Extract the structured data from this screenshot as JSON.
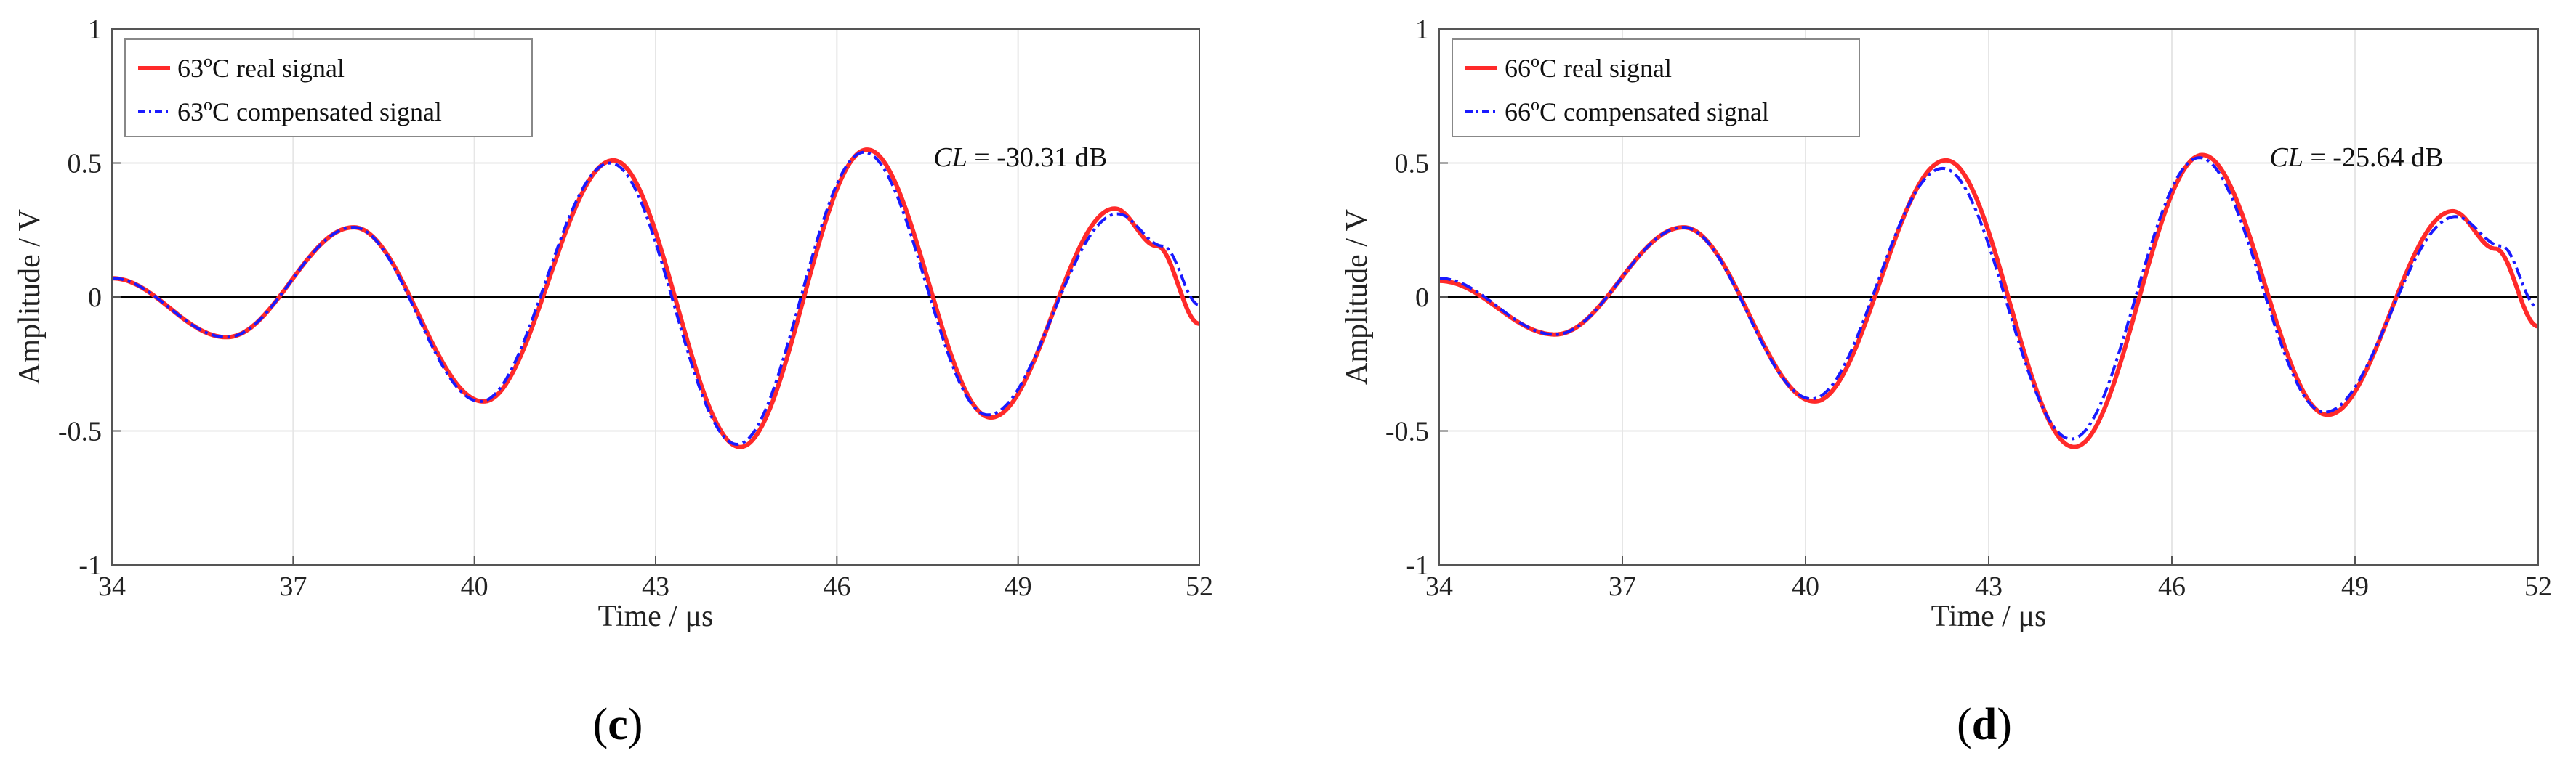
{
  "chart_data": [
    {
      "type": "line",
      "panel_label": "(c)",
      "xlabel": "Time / μs",
      "ylabel": "Amplitude / V",
      "xlim": [
        34,
        52
      ],
      "ylim": [
        -1,
        1
      ],
      "xticks": [
        34,
        37,
        40,
        43,
        46,
        49,
        52
      ],
      "yticks": [
        1,
        0.5,
        0,
        -0.5,
        -1
      ],
      "xtick_labels": [
        "34",
        "37",
        "40",
        "43",
        "46",
        "49",
        "52"
      ],
      "ytick_labels": [
        "1",
        "0.5",
        "0",
        "-0.5",
        "-1"
      ],
      "grid": true,
      "legend_position": "top-left",
      "annotation": {
        "var": "CL",
        "text": " = -30.31 dB",
        "x": 47.6,
        "y": 0.52
      },
      "series": [
        {
          "name": "63°C real signal",
          "legend_base": "63",
          "legend_sup": "o",
          "legend_rest": "C real signal",
          "color": "#ff2a2a",
          "dash": "solid",
          "x": [
            34.0,
            35.9,
            38.0,
            40.15,
            42.3,
            44.4,
            46.5,
            48.55,
            50.6,
            51.3,
            52.0
          ],
          "y": [
            0.07,
            -0.15,
            0.26,
            -0.39,
            0.51,
            -0.56,
            0.55,
            -0.45,
            0.33,
            0.19,
            -0.1
          ]
        },
        {
          "name": "63°C compensated signal",
          "legend_base": "63",
          "legend_sup": "o",
          "legend_rest": "C compensated signal",
          "color": "#1a1aff",
          "dash": "dashdot",
          "x": [
            34.0,
            35.9,
            38.0,
            40.1,
            42.25,
            44.35,
            46.45,
            48.5,
            50.65,
            51.4,
            52.0
          ],
          "y": [
            0.07,
            -0.15,
            0.26,
            -0.39,
            0.5,
            -0.55,
            0.54,
            -0.44,
            0.31,
            0.19,
            -0.03
          ]
        }
      ]
    },
    {
      "type": "line",
      "panel_label": "(d)",
      "xlabel": "Time / μs",
      "ylabel": "Amplitude / V",
      "xlim": [
        34,
        52
      ],
      "ylim": [
        -1,
        1
      ],
      "xticks": [
        34,
        37,
        40,
        43,
        46,
        49,
        52
      ],
      "yticks": [
        1,
        0.5,
        0,
        -0.5,
        -1
      ],
      "xtick_labels": [
        "34",
        "37",
        "40",
        "43",
        "46",
        "49",
        "52"
      ],
      "ytick_labels": [
        "1",
        "0.5",
        "0",
        "-0.5",
        "-1"
      ],
      "grid": true,
      "legend_position": "top-left",
      "annotation": {
        "var": "CL",
        "text": " = -25.64 dB",
        "x": 47.6,
        "y": 0.52
      },
      "series": [
        {
          "name": "66°C real signal",
          "legend_base": "66",
          "legend_sup": "o",
          "legend_rest": "C real signal",
          "color": "#ff2a2a",
          "dash": "solid",
          "x": [
            34.0,
            35.9,
            38.0,
            40.15,
            42.3,
            44.4,
            46.5,
            48.55,
            50.6,
            51.3,
            52.0
          ],
          "y": [
            0.06,
            -0.14,
            0.26,
            -0.39,
            0.51,
            -0.56,
            0.53,
            -0.44,
            0.32,
            0.18,
            -0.11
          ]
        },
        {
          "name": "66°C compensated signal",
          "legend_base": "66",
          "legend_sup": "o",
          "legend_rest": "C compensated signal",
          "color": "#1a1aff",
          "dash": "dashdot",
          "x": [
            34.0,
            35.9,
            38.0,
            40.1,
            42.25,
            44.35,
            46.45,
            48.5,
            50.65,
            51.4,
            52.0
          ],
          "y": [
            0.07,
            -0.14,
            0.26,
            -0.38,
            0.48,
            -0.53,
            0.52,
            -0.43,
            0.3,
            0.19,
            -0.04
          ]
        }
      ]
    }
  ]
}
